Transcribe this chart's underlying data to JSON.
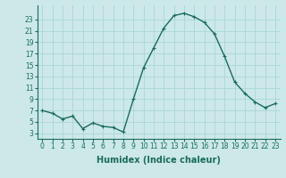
{
  "x": [
    0,
    1,
    2,
    3,
    4,
    5,
    6,
    7,
    8,
    9,
    10,
    11,
    12,
    13,
    14,
    15,
    16,
    17,
    18,
    19,
    20,
    21,
    22,
    23
  ],
  "y": [
    7.0,
    6.5,
    5.5,
    6.0,
    3.8,
    4.8,
    4.2,
    4.0,
    3.2,
    9.0,
    14.5,
    18.0,
    21.5,
    23.7,
    24.1,
    23.5,
    22.5,
    20.5,
    16.5,
    12.0,
    10.0,
    8.5,
    7.5,
    8.2
  ],
  "line_color": "#1a6b5a",
  "marker": "+",
  "markersize": 3,
  "linewidth": 1.0,
  "xlabel": "Humidex (Indice chaleur)",
  "xlabel_fontsize": 7,
  "ylabel_ticks": [
    3,
    5,
    7,
    9,
    11,
    13,
    15,
    17,
    19,
    21,
    23
  ],
  "xtick_labels": [
    "0",
    "1",
    "2",
    "3",
    "4",
    "5",
    "6",
    "7",
    "8",
    "9",
    "10",
    "11",
    "12",
    "13",
    "14",
    "15",
    "16",
    "17",
    "18",
    "19",
    "20",
    "21",
    "22",
    "23"
  ],
  "xlim": [
    -0.5,
    23.5
  ],
  "ylim": [
    2.0,
    25.5
  ],
  "background_color": "#cce8e8",
  "grid_color": "#b0d8d8",
  "tick_fontsize": 5.5,
  "markeredgewidth": 0.8
}
